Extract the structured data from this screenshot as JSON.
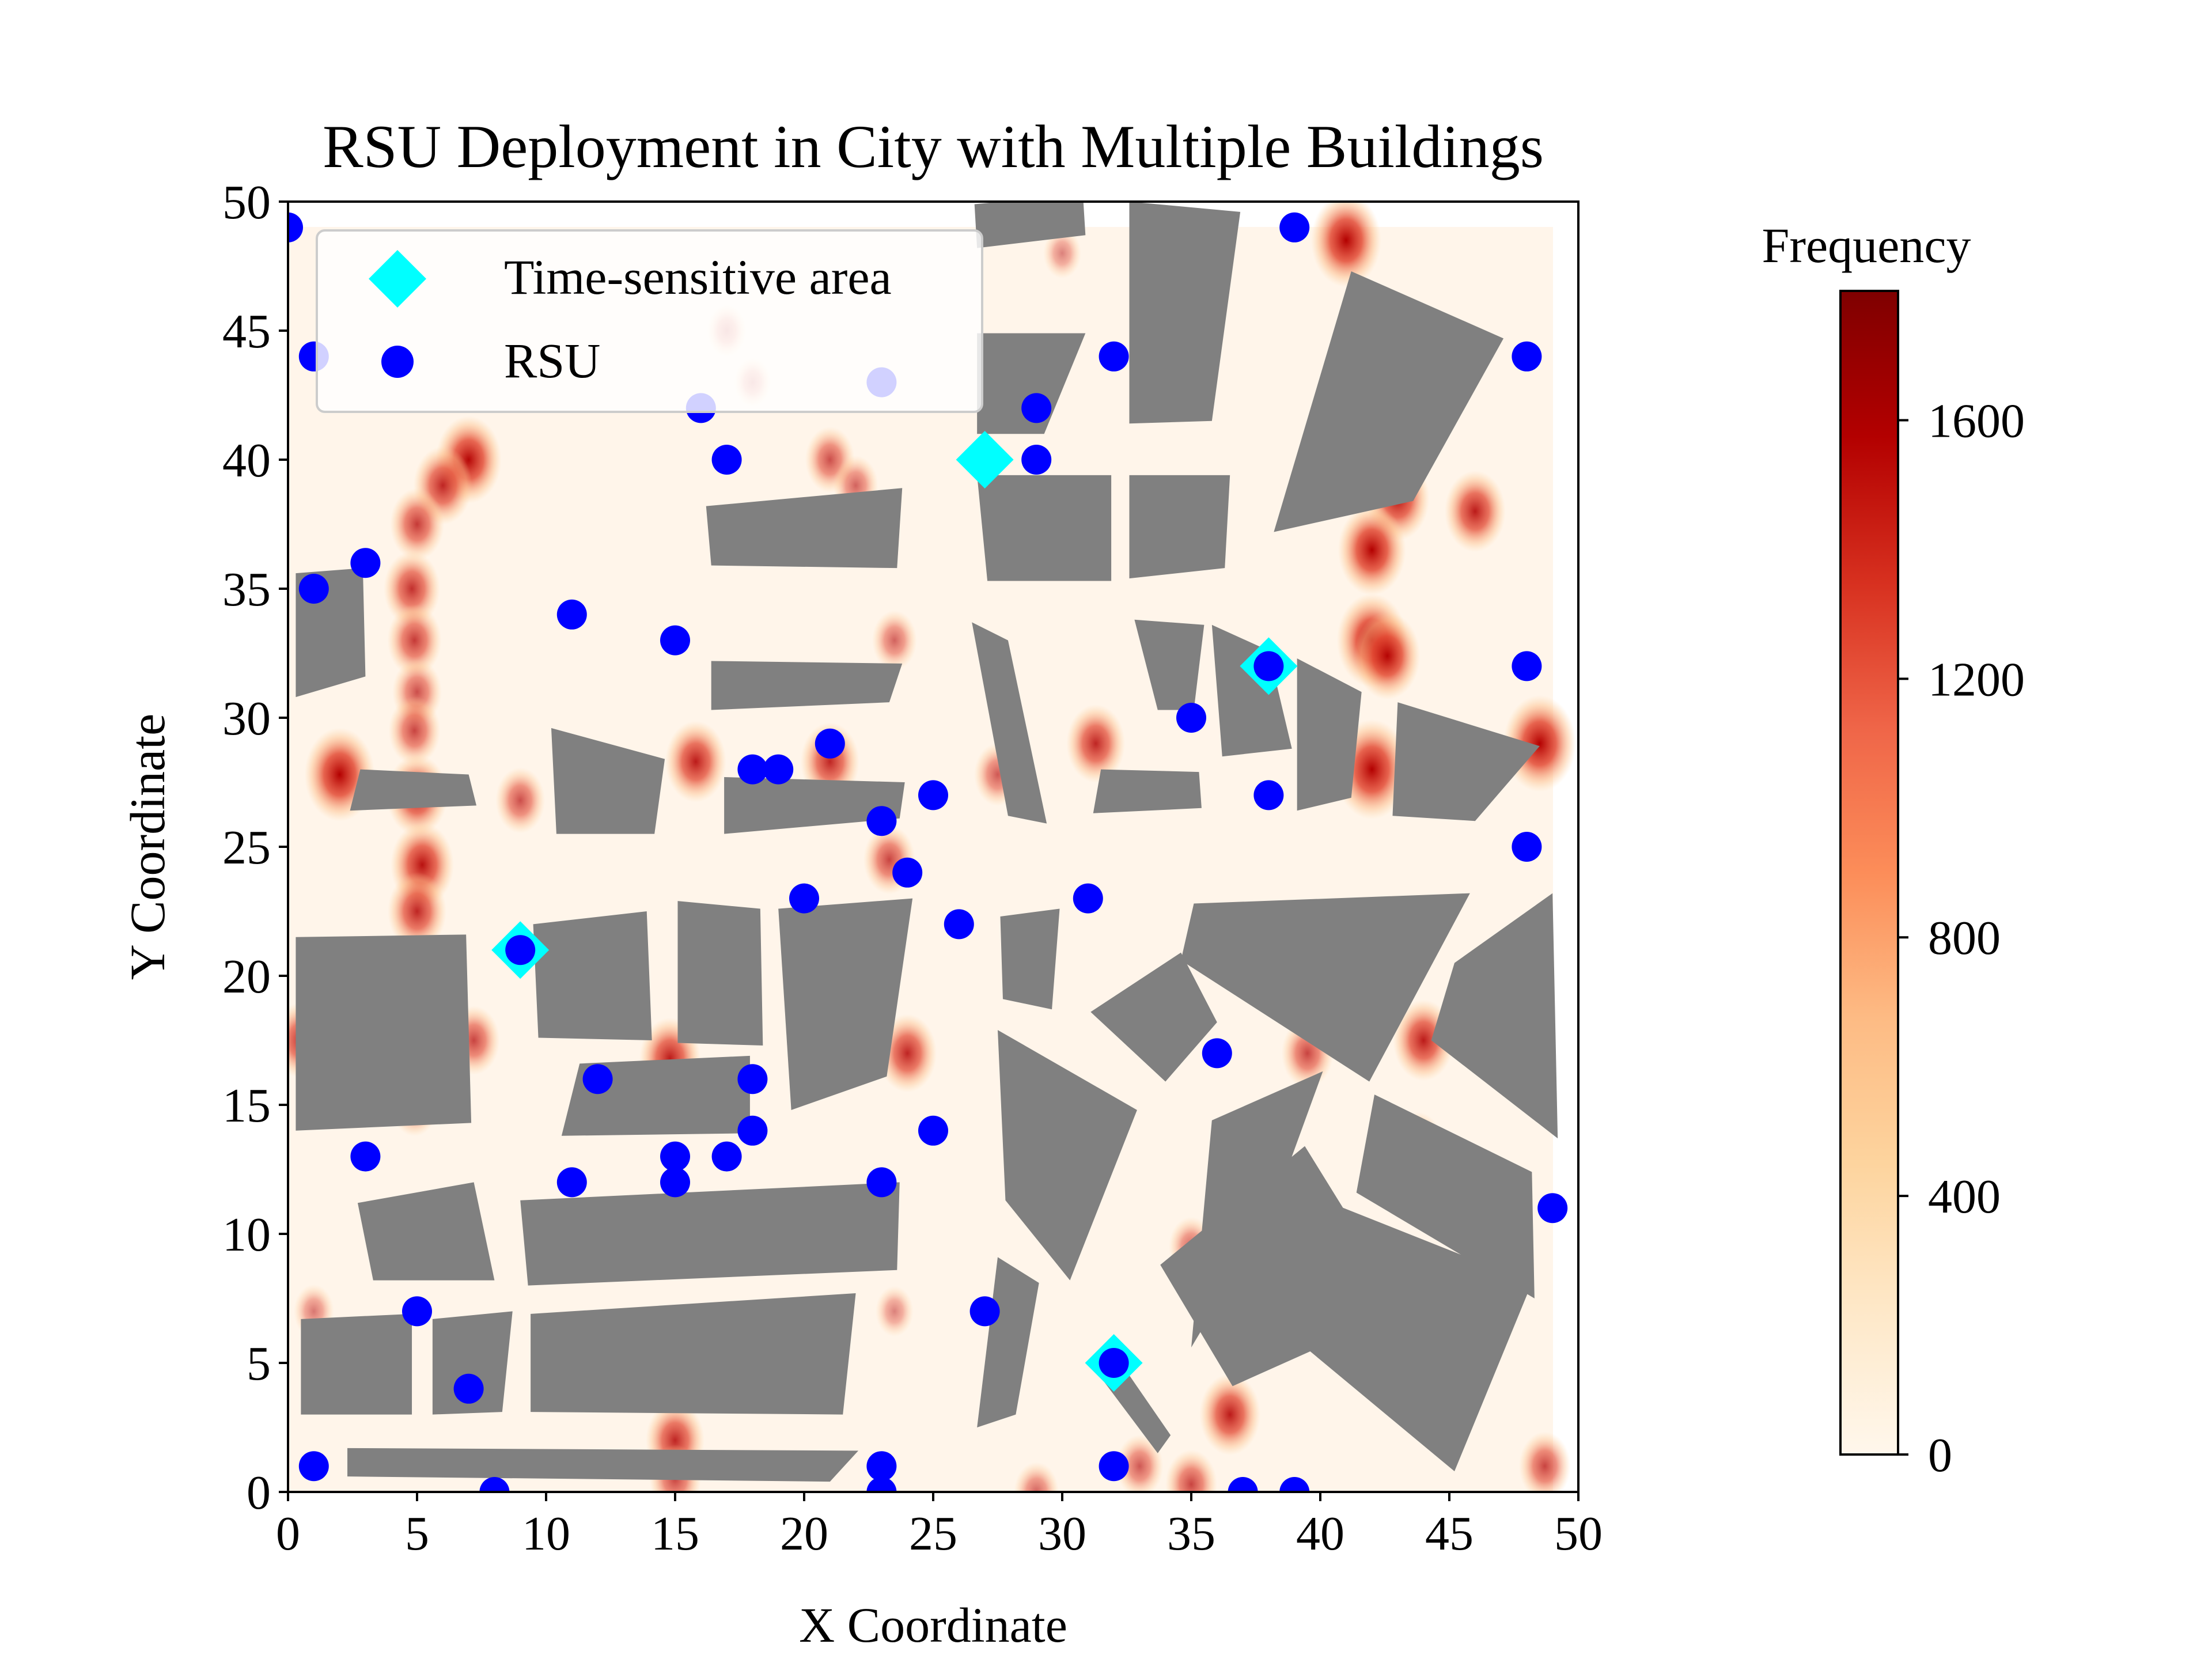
{
  "chart_data": {
    "type": "scatter",
    "title": "RSU Deployment in City with Multiple Buildings",
    "xlabel": "X Coordinate",
    "ylabel": "Y Coordinate",
    "xlim": [
      0,
      50
    ],
    "ylim": [
      0,
      50
    ],
    "xticks": [
      "0",
      "5",
      "10",
      "15",
      "20",
      "25",
      "30",
      "35",
      "40",
      "45",
      "50"
    ],
    "yticks": [
      "0",
      "5",
      "10",
      "15",
      "20",
      "25",
      "30",
      "35",
      "40",
      "45",
      "50"
    ],
    "grid": false,
    "legend_position": "top-left",
    "legend": [
      {
        "label": "Time-sensitive area",
        "marker": "diamond",
        "color": "#00FFFF"
      },
      {
        "label": "RSU",
        "marker": "circle",
        "color": "#0000FF"
      }
    ],
    "series": [
      {
        "name": "Time-sensitive area",
        "marker": "diamond",
        "color": "#00FFFF",
        "points": [
          [
            27,
            40
          ],
          [
            38,
            32
          ],
          [
            9,
            21
          ],
          [
            32,
            5
          ]
        ]
      },
      {
        "name": "RSU",
        "marker": "circle",
        "color": "#0000FF",
        "points": [
          [
            0,
            49
          ],
          [
            39,
            49
          ],
          [
            1,
            44
          ],
          [
            32,
            44
          ],
          [
            48,
            44
          ],
          [
            23,
            43
          ],
          [
            16,
            42
          ],
          [
            29,
            42
          ],
          [
            17,
            40
          ],
          [
            29,
            40
          ],
          [
            3,
            36
          ],
          [
            1,
            35
          ],
          [
            11,
            34
          ],
          [
            15,
            33
          ],
          [
            38,
            32
          ],
          [
            48,
            32
          ],
          [
            35,
            30
          ],
          [
            21,
            29
          ],
          [
            18,
            28
          ],
          [
            19,
            28
          ],
          [
            25,
            27
          ],
          [
            38,
            27
          ],
          [
            23,
            26
          ],
          [
            48,
            25
          ],
          [
            24,
            24
          ],
          [
            20,
            23
          ],
          [
            31,
            23
          ],
          [
            26,
            22
          ],
          [
            9,
            21
          ],
          [
            36,
            17
          ],
          [
            12,
            16
          ],
          [
            18,
            16
          ],
          [
            18,
            14
          ],
          [
            25,
            14
          ],
          [
            3,
            13
          ],
          [
            15,
            13
          ],
          [
            17,
            13
          ],
          [
            11,
            12
          ],
          [
            15,
            12
          ],
          [
            23,
            12
          ],
          [
            49,
            11
          ],
          [
            5,
            7
          ],
          [
            27,
            7
          ],
          [
            32,
            5
          ],
          [
            7,
            4
          ],
          [
            1,
            1
          ],
          [
            23,
            1
          ],
          [
            32,
            1
          ],
          [
            8,
            0
          ],
          [
            23,
            0
          ],
          [
            37,
            0
          ],
          [
            39,
            0
          ]
        ]
      }
    ],
    "buildings": {
      "color": "#808080",
      "polygons": [
        [
          [
            26.7,
            48.2
          ],
          [
            30.9,
            48.7
          ],
          [
            30.8,
            50.3
          ],
          [
            26.6,
            49.9
          ]
        ],
        [
          [
            26.7,
            44.9
          ],
          [
            30.9,
            44.9
          ],
          [
            29.3,
            41.0
          ],
          [
            26.7,
            41.0
          ]
        ],
        [
          [
            32.6,
            50.0
          ],
          [
            36.9,
            49.6
          ],
          [
            35.8,
            41.5
          ],
          [
            32.6,
            41.4
          ]
        ],
        [
          [
            41.2,
            47.3
          ],
          [
            47.1,
            44.7
          ],
          [
            43.6,
            38.4
          ],
          [
            38.2,
            37.2
          ]
        ],
        [
          [
            16.2,
            38.2
          ],
          [
            23.8,
            38.9
          ],
          [
            23.6,
            35.8
          ],
          [
            16.4,
            35.9
          ]
        ],
        [
          [
            26.7,
            39.4
          ],
          [
            31.9,
            39.4
          ],
          [
            31.9,
            35.3
          ],
          [
            27.1,
            35.3
          ]
        ],
        [
          [
            32.6,
            39.4
          ],
          [
            36.5,
            39.4
          ],
          [
            36.3,
            35.8
          ],
          [
            32.6,
            35.4
          ]
        ],
        [
          [
            0.3,
            35.6
          ],
          [
            2.9,
            35.8
          ],
          [
            3.0,
            31.6
          ],
          [
            0.3,
            30.8
          ]
        ],
        [
          [
            16.4,
            32.2
          ],
          [
            23.8,
            32.1
          ],
          [
            23.3,
            30.6
          ],
          [
            16.4,
            30.3
          ]
        ],
        [
          [
            26.5,
            33.7
          ],
          [
            27.9,
            33.0
          ],
          [
            29.4,
            25.9
          ],
          [
            27.9,
            26.2
          ]
        ],
        [
          [
            32.8,
            33.8
          ],
          [
            35.5,
            33.6
          ],
          [
            35.1,
            30.3
          ],
          [
            33.7,
            30.3
          ]
        ],
        [
          [
            35.8,
            33.6
          ],
          [
            38.0,
            32.6
          ],
          [
            38.9,
            28.8
          ],
          [
            36.2,
            28.5
          ]
        ],
        [
          [
            39.1,
            32.3
          ],
          [
            41.6,
            31.0
          ],
          [
            41.2,
            26.9
          ],
          [
            39.1,
            26.4
          ]
        ],
        [
          [
            43.0,
            30.6
          ],
          [
            48.5,
            28.9
          ],
          [
            46.0,
            26.0
          ],
          [
            42.8,
            26.2
          ]
        ],
        [
          [
            10.2,
            29.6
          ],
          [
            14.6,
            28.4
          ],
          [
            14.2,
            25.5
          ],
          [
            10.4,
            25.5
          ]
        ],
        [
          [
            2.8,
            28.0
          ],
          [
            7.0,
            27.8
          ],
          [
            7.3,
            26.6
          ],
          [
            2.4,
            26.4
          ]
        ],
        [
          [
            16.9,
            27.7
          ],
          [
            23.9,
            27.5
          ],
          [
            23.7,
            26.1
          ],
          [
            16.9,
            25.5
          ]
        ],
        [
          [
            31.5,
            28.0
          ],
          [
            35.3,
            27.9
          ],
          [
            35.4,
            26.5
          ],
          [
            31.2,
            26.3
          ]
        ],
        [
          [
            0.3,
            21.5
          ],
          [
            6.9,
            21.6
          ],
          [
            7.1,
            14.3
          ],
          [
            0.3,
            14.0
          ]
        ],
        [
          [
            9.5,
            22.0
          ],
          [
            13.9,
            22.5
          ],
          [
            14.1,
            17.5
          ],
          [
            9.7,
            17.6
          ]
        ],
        [
          [
            15.1,
            22.9
          ],
          [
            18.3,
            22.6
          ],
          [
            18.4,
            17.3
          ],
          [
            15.1,
            17.4
          ]
        ],
        [
          [
            19.0,
            22.6
          ],
          [
            24.2,
            23.0
          ],
          [
            23.2,
            16.1
          ],
          [
            19.5,
            14.8
          ]
        ],
        [
          [
            27.6,
            22.3
          ],
          [
            29.9,
            22.6
          ],
          [
            29.6,
            18.7
          ],
          [
            27.7,
            19.1
          ]
        ],
        [
          [
            31.1,
            18.6
          ],
          [
            34.6,
            20.9
          ],
          [
            36.0,
            18.2
          ],
          [
            34.0,
            15.9
          ]
        ],
        [
          [
            35.1,
            22.8
          ],
          [
            45.8,
            23.2
          ],
          [
            41.9,
            15.9
          ],
          [
            34.6,
            20.6
          ]
        ],
        [
          [
            45.2,
            20.5
          ],
          [
            49.0,
            23.2
          ],
          [
            49.2,
            13.7
          ],
          [
            44.3,
            17.5
          ]
        ],
        [
          [
            11.3,
            16.6
          ],
          [
            17.9,
            16.9
          ],
          [
            17.9,
            13.9
          ],
          [
            10.6,
            13.8
          ]
        ],
        [
          [
            27.5,
            17.9
          ],
          [
            32.9,
            14.8
          ],
          [
            30.3,
            8.2
          ],
          [
            27.8,
            11.3
          ]
        ],
        [
          [
            35.8,
            14.4
          ],
          [
            40.1,
            16.3
          ],
          [
            38.1,
            10.8
          ],
          [
            35.0,
            5.6
          ]
        ],
        [
          [
            42.1,
            15.4
          ],
          [
            48.2,
            12.4
          ],
          [
            48.3,
            7.5
          ],
          [
            41.4,
            11.6
          ]
        ],
        [
          [
            2.7,
            11.2
          ],
          [
            7.2,
            12.0
          ],
          [
            8.0,
            8.2
          ],
          [
            3.3,
            8.2
          ]
        ],
        [
          [
            9.0,
            11.3
          ],
          [
            23.7,
            12.0
          ],
          [
            23.6,
            8.6
          ],
          [
            9.3,
            8.0
          ]
        ],
        [
          [
            27.5,
            9.1
          ],
          [
            29.1,
            8.1
          ],
          [
            28.2,
            3.0
          ],
          [
            26.7,
            2.5
          ]
        ],
        [
          [
            33.8,
            8.8
          ],
          [
            39.4,
            13.4
          ],
          [
            43.3,
            7.1
          ],
          [
            36.6,
            4.1
          ]
        ],
        [
          [
            38.9,
            11.8
          ],
          [
            48.2,
            8.1
          ],
          [
            45.2,
            0.8
          ],
          [
            38.1,
            6.7
          ]
        ],
        [
          [
            0.5,
            6.7
          ],
          [
            4.8,
            6.9
          ],
          [
            4.8,
            3.0
          ],
          [
            0.5,
            3.0
          ]
        ],
        [
          [
            5.6,
            6.7
          ],
          [
            8.7,
            7.0
          ],
          [
            8.3,
            3.1
          ],
          [
            5.6,
            3.0
          ]
        ],
        [
          [
            9.4,
            6.9
          ],
          [
            22.0,
            7.7
          ],
          [
            21.5,
            3.0
          ],
          [
            9.4,
            3.1
          ]
        ],
        [
          [
            31.3,
            4.7
          ],
          [
            32.2,
            5.1
          ],
          [
            34.2,
            2.2
          ],
          [
            33.7,
            1.5
          ]
        ],
        [
          [
            2.3,
            1.7
          ],
          [
            22.1,
            1.6
          ],
          [
            21.0,
            0.4
          ],
          [
            2.3,
            0.6
          ]
        ]
      ]
    },
    "heatmap": {
      "colorbar_label": "Frequency",
      "colormap": "OrRd",
      "colorbar_ticks": [
        "0",
        "400",
        "800",
        "1200",
        "1600"
      ],
      "range": [
        0,
        1800
      ],
      "hotspots": [
        [
          41,
          48.5,
          1700
        ],
        [
          30,
          48,
          300
        ],
        [
          17,
          45,
          400
        ],
        [
          18,
          43,
          300
        ],
        [
          7,
          40,
          1500
        ],
        [
          6,
          39,
          1200
        ],
        [
          5,
          37.5,
          1000
        ],
        [
          21,
          40,
          800
        ],
        [
          22,
          39,
          600
        ],
        [
          43,
          38.5,
          1400
        ],
        [
          46,
          38,
          1300
        ],
        [
          42,
          36.5,
          1600
        ],
        [
          4.8,
          35,
          1100
        ],
        [
          4.9,
          33,
          1000
        ],
        [
          42,
          33,
          1700
        ],
        [
          42.6,
          32.4,
          1500
        ],
        [
          23.5,
          33,
          600
        ],
        [
          5,
          31,
          800
        ],
        [
          4.9,
          29.5,
          900
        ],
        [
          2,
          27.8,
          1700
        ],
        [
          5,
          27,
          1300
        ],
        [
          9,
          26.8,
          800
        ],
        [
          42,
          28,
          1900
        ],
        [
          48.5,
          29,
          1800
        ],
        [
          31.3,
          29,
          1200
        ],
        [
          15.8,
          28.3,
          1300
        ],
        [
          21,
          28.3,
          1200
        ],
        [
          27.5,
          27.8,
          700
        ],
        [
          23.3,
          24.5,
          900
        ],
        [
          5.2,
          24.3,
          1400
        ],
        [
          5.0,
          22.5,
          1200
        ],
        [
          0.5,
          17.5,
          1100
        ],
        [
          7.2,
          17.5,
          900
        ],
        [
          14.8,
          16.8,
          1300
        ],
        [
          24,
          17,
          1200
        ],
        [
          39.5,
          17,
          900
        ],
        [
          44,
          17.5,
          1300
        ],
        [
          4.9,
          15,
          700
        ],
        [
          43.8,
          13.5,
          700
        ],
        [
          35,
          9.5,
          600
        ],
        [
          36.5,
          3,
          1300
        ],
        [
          33,
          1,
          700
        ],
        [
          35,
          0.3,
          900
        ],
        [
          48.7,
          1,
          900
        ],
        [
          15,
          2,
          1200
        ],
        [
          15,
          0.5,
          900
        ],
        [
          1,
          7,
          400
        ],
        [
          23.5,
          7,
          300
        ],
        [
          42,
          6,
          500
        ],
        [
          29,
          0,
          600
        ]
      ]
    }
  }
}
